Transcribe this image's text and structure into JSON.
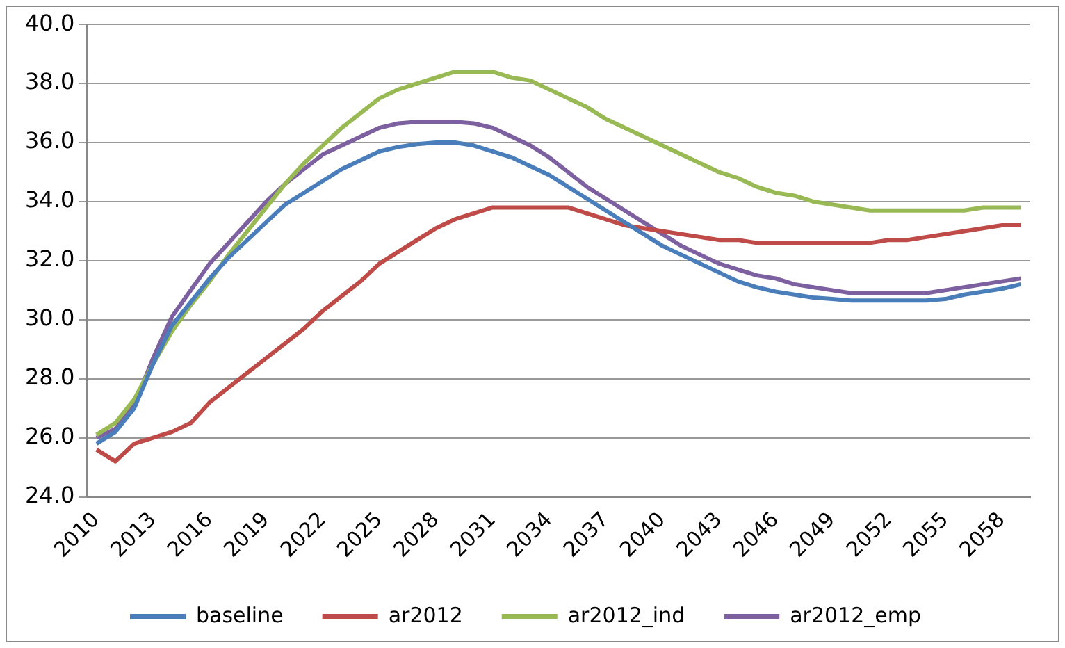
{
  "chart_data": {
    "type": "line",
    "categories": [
      "2010",
      null,
      null,
      "2013",
      null,
      null,
      "2016",
      null,
      null,
      "2019",
      null,
      null,
      "2022",
      null,
      null,
      "2025",
      null,
      null,
      "2028",
      null,
      null,
      "2031",
      null,
      null,
      "2034",
      null,
      null,
      "2037",
      null,
      null,
      "2040",
      null,
      null,
      "2043",
      null,
      null,
      "2046",
      null,
      null,
      "2049",
      null,
      null,
      "2052",
      null,
      null,
      "2055",
      null,
      null,
      "2058",
      null
    ],
    "series": [
      {
        "name": "baseline",
        "color": "#4a7ebb",
        "values": [
          25.8,
          26.2,
          27.0,
          28.5,
          29.8,
          30.6,
          31.4,
          32.1,
          32.7,
          33.3,
          33.9,
          34.3,
          34.7,
          35.1,
          35.4,
          35.7,
          35.85,
          35.95,
          36.0,
          36.0,
          35.9,
          35.7,
          35.5,
          35.2,
          34.9,
          34.5,
          34.1,
          33.7,
          33.3,
          32.9,
          32.5,
          32.2,
          31.9,
          31.6,
          31.3,
          31.1,
          30.95,
          30.85,
          30.75,
          30.7,
          30.65,
          30.65,
          30.65,
          30.65,
          30.65,
          30.7,
          30.85,
          30.95,
          31.05,
          31.2
        ]
      },
      {
        "name": "ar2012",
        "color": "#be4b48",
        "values": [
          25.6,
          25.2,
          25.8,
          26.0,
          26.2,
          26.5,
          27.2,
          27.7,
          28.2,
          28.7,
          29.2,
          29.7,
          30.3,
          30.8,
          31.3,
          31.9,
          32.3,
          32.7,
          33.1,
          33.4,
          33.6,
          33.8,
          33.8,
          33.8,
          33.8,
          33.8,
          33.6,
          33.4,
          33.2,
          33.1,
          33.0,
          32.9,
          32.8,
          32.7,
          32.7,
          32.6,
          32.6,
          32.6,
          32.6,
          32.6,
          32.6,
          32.6,
          32.7,
          32.7,
          32.8,
          32.9,
          33.0,
          33.1,
          33.2,
          33.2
        ]
      },
      {
        "name": "ar2012_ind",
        "color": "#98b954",
        "values": [
          26.1,
          26.5,
          27.3,
          28.5,
          29.6,
          30.5,
          31.3,
          32.2,
          33.0,
          33.8,
          34.6,
          35.3,
          35.9,
          36.5,
          37.0,
          37.5,
          37.8,
          38.0,
          38.2,
          38.4,
          38.4,
          38.4,
          38.2,
          38.1,
          37.8,
          37.5,
          37.2,
          36.8,
          36.5,
          36.2,
          35.9,
          35.6,
          35.3,
          35.0,
          34.8,
          34.5,
          34.3,
          34.2,
          34.0,
          33.9,
          33.8,
          33.7,
          33.7,
          33.7,
          33.7,
          33.7,
          33.7,
          33.8,
          33.8,
          33.8
        ]
      },
      {
        "name": "ar2012_emp",
        "color": "#7d60a0",
        "values": [
          26.0,
          26.3,
          27.1,
          28.7,
          30.1,
          31.0,
          31.9,
          32.6,
          33.3,
          34.0,
          34.6,
          35.1,
          35.6,
          35.9,
          36.2,
          36.5,
          36.65,
          36.7,
          36.7,
          36.7,
          36.65,
          36.5,
          36.2,
          35.9,
          35.5,
          35.0,
          34.5,
          34.1,
          33.7,
          33.3,
          32.9,
          32.5,
          32.2,
          31.9,
          31.7,
          31.5,
          31.4,
          31.2,
          31.1,
          31.0,
          30.9,
          30.9,
          30.9,
          30.9,
          30.9,
          31.0,
          31.1,
          31.2,
          31.3,
          31.4
        ]
      }
    ],
    "ylim": [
      24,
      40
    ],
    "yticks": [
      {
        "value": 24,
        "label": "24.0"
      },
      {
        "value": 26,
        "label": "26.0"
      },
      {
        "value": 28,
        "label": "28.0"
      },
      {
        "value": 30,
        "label": "30.0"
      },
      {
        "value": 32,
        "label": "32.0"
      },
      {
        "value": 34,
        "label": "34.0"
      },
      {
        "value": 36,
        "label": "36.0"
      },
      {
        "value": 38,
        "label": "38.0"
      },
      {
        "value": 40,
        "label": "40.0"
      }
    ],
    "grid": "y",
    "legend": "bottom",
    "marker": "none",
    "line_style": "solid"
  }
}
